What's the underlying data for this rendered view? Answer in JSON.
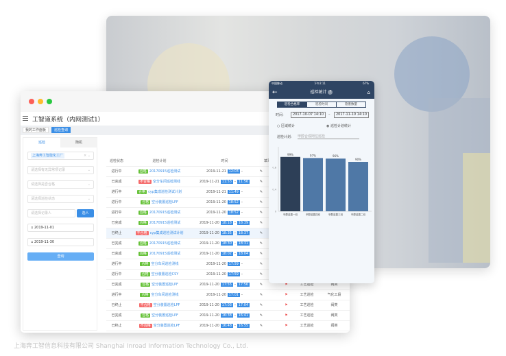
{
  "app": {
    "title": "工智道系统（内网测试1）",
    "tabs": [
      {
        "label": "我的工作面板"
      },
      {
        "label": "巡检查询"
      }
    ]
  },
  "left": {
    "tabs": [
      "巡检",
      "随机"
    ],
    "plant_tag": "上海奔工智能化工厂",
    "selects": [
      "请选择有无异常项记录",
      "请选择是否合格",
      "请选择巡检状态"
    ],
    "recorder_placeholder": "请选择记录人",
    "select_button": "选人",
    "date_start": "2019-11-01",
    "date_end": "2019-11-30",
    "query_button": "查询"
  },
  "table": {
    "headers": [
      "巡检状态",
      "巡检计划",
      "时间",
      "填写"
    ],
    "rows": [
      {
        "status": "进行中",
        "result": "合格",
        "plan": "20170915巡检测试",
        "date": "2019-11-21",
        "start": "12:03",
        "end": ""
      },
      {
        "status": "已完成",
        "result": "不合格",
        "plan": "空分车间巡检测线",
        "date": "2019-11-21",
        "start": "11:53",
        "end": "11:56"
      },
      {
        "status": "进行中",
        "result": "合格",
        "plan": "cyp集成巡检测试计划",
        "date": "2019-11-21",
        "start": "11:49",
        "end": ""
      },
      {
        "status": "进行中",
        "result": "合格",
        "plan": "空分装置巡检LPF",
        "date": "2019-11-20",
        "start": "18:52",
        "end": ""
      },
      {
        "status": "进行中",
        "result": "合格",
        "plan": "20170915巡检测试",
        "date": "2019-11-20",
        "start": "18:52",
        "end": ""
      },
      {
        "status": "已完成",
        "result": "合格",
        "plan": "20170915巡检测试",
        "date": "2019-11-20",
        "start": "18:18",
        "end": "18:39"
      },
      {
        "status": "已终止",
        "result": "不合格",
        "plan": "cyp集成巡检测试计划",
        "date": "2019-11-20",
        "start": "18:35",
        "end": "18:37"
      },
      {
        "status": "已完成",
        "result": "合格",
        "plan": "20170915巡检测试",
        "date": "2019-11-20",
        "start": "18:30",
        "end": "18:31"
      },
      {
        "status": "已完成",
        "result": "合格",
        "plan": "20170915巡检测试",
        "date": "2019-11-20",
        "start": "18:02",
        "end": "18:04"
      },
      {
        "status": "进行中",
        "result": "合格",
        "plan": "空分车间巡检测线",
        "date": "2019-11-20",
        "start": "17:59",
        "end": ""
      },
      {
        "status": "进行中",
        "result": "合格",
        "plan": "空分装置巡检CSY",
        "date": "2019-11-20",
        "start": "17:59",
        "end": ""
      },
      {
        "status": "已完成",
        "result": "合格",
        "plan": "空分装置巡检LPF",
        "date": "2019-11-20",
        "start": "17:55",
        "end": "17:56",
        "type": "工艺巡检",
        "area": "阀类"
      },
      {
        "status": "进行中",
        "result": "合格",
        "plan": "空分车间巡检测线",
        "date": "2019-11-20",
        "start": "17:01",
        "end": "",
        "type": "工艺巡检",
        "area": "气化工段"
      },
      {
        "status": "已终止",
        "result": "不合格",
        "plan": "空分装置巡检LPF",
        "date": "2019-11-20",
        "start": "17:03",
        "end": "17:04",
        "type": "工艺巡检",
        "area": "阀类"
      },
      {
        "status": "已完成",
        "result": "合格",
        "plan": "空分装置巡检LPF",
        "date": "2019-11-20",
        "start": "16:38",
        "end": "16:41",
        "type": "工艺巡检",
        "area": "阀类"
      },
      {
        "status": "已终止",
        "result": "不合格",
        "plan": "空分装置巡检LPF",
        "date": "2019-11-20",
        "start": "16:48",
        "end": "16:55",
        "type": "工艺巡检",
        "area": "阀类"
      }
    ]
  },
  "phone": {
    "carrier": "中国移动",
    "time": "下午2:11",
    "battery": "67%",
    "title": "巡检统计",
    "segments": [
      "巡检合格率",
      "巡检时间",
      "隐患数量"
    ],
    "time_label": "时间:",
    "date_from": "2017-10-07 14:10",
    "date_to": "2017-11-10 14:10",
    "radios": [
      "区域统计",
      "巡检计划统计"
    ],
    "selected_radio": 1,
    "plan_label": "巡检计划:",
    "plan_placeholder": "甲醇合成岗位巡检",
    "chart_data": {
      "type": "bar",
      "categories": [
        "甲醇装置一班",
        "甲醇装置四班",
        "甲醇装置三班",
        "甲醇装置二班"
      ],
      "values": [
        0.99,
        0.97,
        0.96,
        0.9
      ],
      "data_labels": [
        "99%",
        "97%",
        "96%",
        "90%"
      ],
      "yticks": [
        "0",
        "0.4",
        "0.8"
      ],
      "ylim": [
        0,
        1.1
      ],
      "colors": [
        "#2d3f57",
        "#4f78a6",
        "#4f78a6",
        "#4f78a6"
      ]
    }
  },
  "colors": {
    "accent": "#3a8ee6",
    "pass": "#67c23a",
    "fail": "#f56c6c"
  },
  "watermark": "上海奔工智信息科技有限公司 Shanghai Inroad Information Technology Co., Ltd."
}
